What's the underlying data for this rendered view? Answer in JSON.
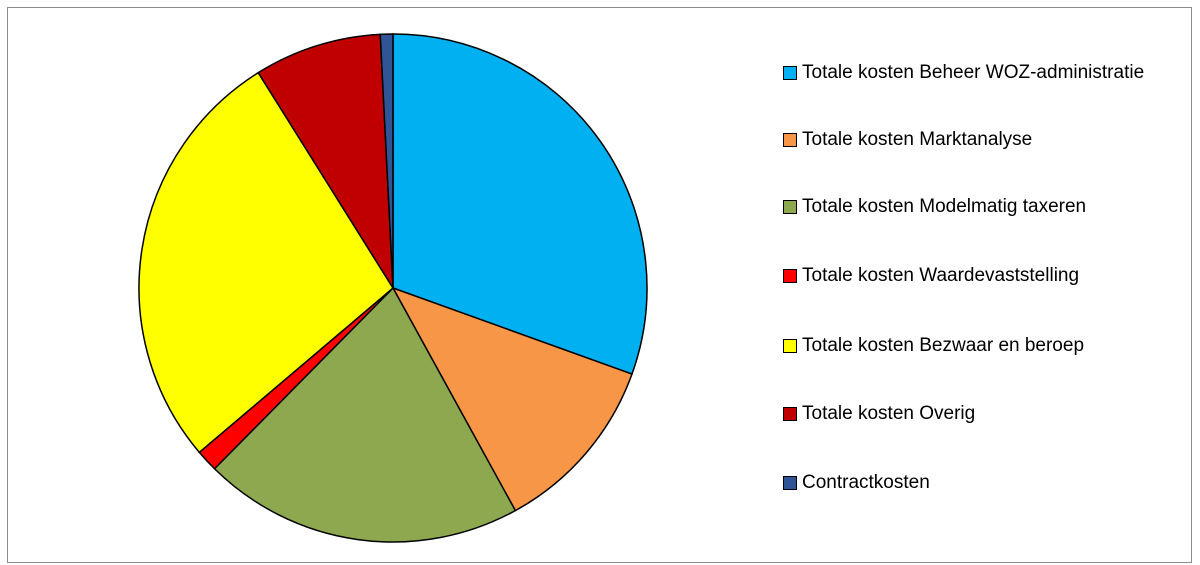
{
  "chart_data": {
    "type": "pie",
    "categories": [
      "Totale kosten Beheer WOZ-administratie",
      "Totale kosten Marktanalyse",
      "Totale kosten Modelmatig taxeren",
      "Totale kosten Waardevaststelling",
      "Totale kosten Bezwaar en beroep",
      "Totale kosten Overig",
      "Contractkosten"
    ],
    "values": [
      30.5,
      11.5,
      20.4,
      1.4,
      27.3,
      8.1,
      0.8
    ],
    "colors": [
      "#00b0f0",
      "#f79646",
      "#8ea84f",
      "#ff0000",
      "#ffff00",
      "#c00000",
      "#2f5597"
    ],
    "legend": "right"
  }
}
